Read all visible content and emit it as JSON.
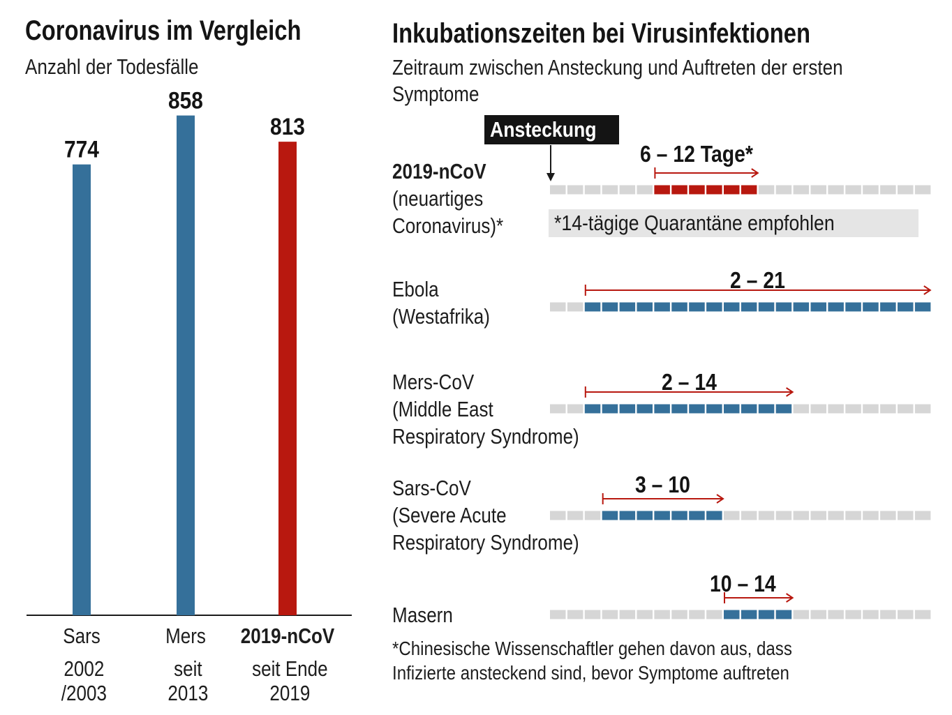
{
  "chart_data": [
    {
      "type": "bar",
      "title": "Coronavirus im Vergleich",
      "subtitle": "Anzahl der Todesfälle",
      "categories": [
        "Sars",
        "Mers",
        "2019-nCoV"
      ],
      "category_sublabels": [
        [
          "2002",
          "/2003"
        ],
        [
          "seit",
          "2013"
        ],
        [
          "seit Ende",
          "2019"
        ]
      ],
      "values": [
        774,
        858,
        813
      ],
      "data_labels": [
        "774",
        "858",
        "813"
      ],
      "colors": [
        "#35709a",
        "#35709a",
        "#b8180f"
      ],
      "ylim": [
        0,
        1000
      ]
    },
    {
      "type": "range",
      "title": "Inkubationszeiten bei Virusinfektionen",
      "subtitle": "Zeitraum zwischen Ansteckung und Auftreten der ersten Symptome",
      "marker_label": "Ansteckung",
      "unit": "Tage",
      "total_days": 21,
      "rows": [
        {
          "lines": [
            "2019-nCoV",
            "(neuartiges",
            "Coronavirus)*"
          ],
          "bold_first": true,
          "start": 6,
          "end": 12,
          "range_label": "6 – 12 Tage*",
          "color": "#b8180f",
          "note": "*14-tägige Quarantäne empfohlen"
        },
        {
          "lines": [
            "Ebola",
            "(Westafrika)"
          ],
          "start": 2,
          "end": 21,
          "range_label": "2 – 21",
          "color": "#35709a"
        },
        {
          "lines": [
            "Mers-CoV",
            "(Middle East",
            "Respiratory Syndrome)"
          ],
          "start": 2,
          "end": 14,
          "range_label": "2 – 14",
          "color": "#35709a"
        },
        {
          "lines": [
            "Sars-CoV",
            "(Severe Acute",
            "Respiratory Syndrome)"
          ],
          "start": 3,
          "end": 10,
          "range_label": "3 – 10",
          "color": "#35709a"
        },
        {
          "lines": [
            "Masern"
          ],
          "start": 10,
          "end": 14,
          "range_label": "10 – 14",
          "color": "#35709a"
        }
      ],
      "footnote": [
        "*Chinesische Wissenschaftler gehen davon aus, dass",
        "Infizierte ansteckend sind, bevor Symptome auftreten"
      ]
    }
  ],
  "colors": {
    "blue": "#35709a",
    "red": "#b8180f",
    "grey": "#d6d6d6",
    "arrow": "#b8180f"
  }
}
